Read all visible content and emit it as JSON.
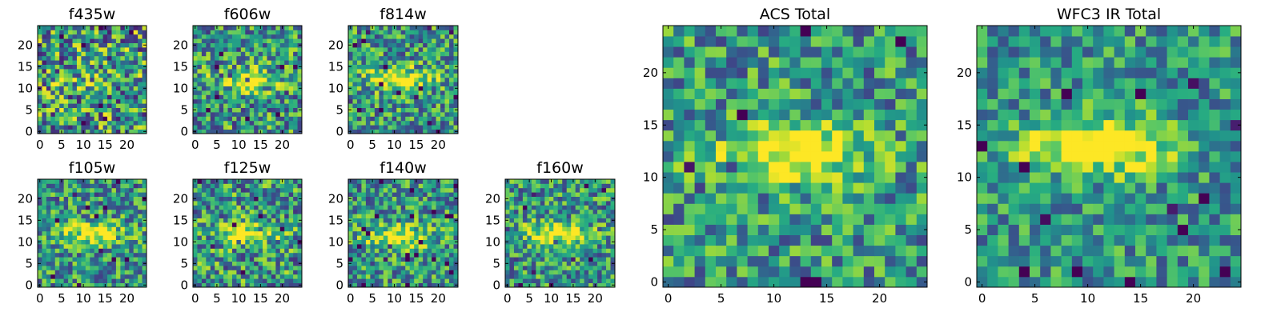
{
  "chart_data": [
    {
      "type": "heatmap",
      "title": "f435w",
      "size": 25,
      "seed": 11,
      "blob": {
        "cx": 12,
        "cy": 12,
        "amp": 0.1
      },
      "noise": 0.55,
      "xticks": [
        "0",
        "5",
        "10",
        "15",
        "20"
      ],
      "yticks": [
        "0",
        "5",
        "10",
        "15",
        "20"
      ],
      "xlim": [
        -0.5,
        24.5
      ],
      "ylim": [
        -0.5,
        24.5
      ],
      "colormap": "viridis"
    },
    {
      "type": "heatmap",
      "title": "f606w",
      "size": 25,
      "seed": 23,
      "blob": {
        "cx": 12,
        "cy": 12,
        "amp": 0.45
      },
      "noise": 0.45,
      "xticks": [
        "0",
        "5",
        "10",
        "15",
        "20"
      ],
      "yticks": [
        "0",
        "5",
        "10",
        "15",
        "20"
      ],
      "xlim": [
        -0.5,
        24.5
      ],
      "ylim": [
        -0.5,
        24.5
      ],
      "colormap": "viridis"
    },
    {
      "type": "heatmap",
      "title": "f814w",
      "size": 25,
      "seed": 37,
      "blob": {
        "cx": 11,
        "cy": 12,
        "amp": 0.55
      },
      "noise": 0.42,
      "xticks": [
        "0",
        "5",
        "10",
        "15",
        "20"
      ],
      "yticks": [
        "0",
        "5",
        "10",
        "15",
        "20"
      ],
      "xlim": [
        -0.5,
        24.5
      ],
      "ylim": [
        -0.5,
        24.5
      ],
      "colormap": "viridis"
    },
    {
      "type": "heatmap",
      "title": "f105w",
      "size": 25,
      "seed": 41,
      "blob": {
        "cx": 12,
        "cy": 12,
        "amp": 0.5
      },
      "noise": 0.4,
      "xticks": [
        "0",
        "5",
        "10",
        "15",
        "20"
      ],
      "yticks": [
        "0",
        "5",
        "10",
        "15",
        "20"
      ],
      "xlim": [
        -0.5,
        24.5
      ],
      "ylim": [
        -0.5,
        24.5
      ],
      "colormap": "viridis"
    },
    {
      "type": "heatmap",
      "title": "f125w",
      "size": 25,
      "seed": 53,
      "blob": {
        "cx": 12,
        "cy": 12,
        "amp": 0.5
      },
      "noise": 0.45,
      "xticks": [
        "0",
        "5",
        "10",
        "15",
        "20"
      ],
      "yticks": [
        "0",
        "5",
        "10",
        "15",
        "20"
      ],
      "xlim": [
        -0.5,
        24.5
      ],
      "ylim": [
        -0.5,
        24.5
      ],
      "colormap": "viridis"
    },
    {
      "type": "heatmap",
      "title": "f140w",
      "size": 25,
      "seed": 67,
      "blob": {
        "cx": 11,
        "cy": 11,
        "amp": 0.5
      },
      "noise": 0.4,
      "xticks": [
        "0",
        "5",
        "10",
        "15",
        "20"
      ],
      "yticks": [
        "0",
        "5",
        "10",
        "15",
        "20"
      ],
      "xlim": [
        -0.5,
        24.5
      ],
      "ylim": [
        -0.5,
        24.5
      ],
      "colormap": "viridis"
    },
    {
      "type": "heatmap",
      "title": "f160w",
      "size": 25,
      "seed": 79,
      "blob": {
        "cx": 11,
        "cy": 12,
        "amp": 0.5
      },
      "noise": 0.4,
      "xticks": [
        "0",
        "5",
        "10",
        "15",
        "20"
      ],
      "yticks": [
        "0",
        "5",
        "10",
        "15",
        "20"
      ],
      "xlim": [
        -0.5,
        24.5
      ],
      "ylim": [
        -0.5,
        24.5
      ],
      "colormap": "viridis"
    },
    {
      "type": "heatmap",
      "title": "ACS Total",
      "size": 25,
      "seed": 97,
      "blob": {
        "cx": 12,
        "cy": 12,
        "amp": 0.6
      },
      "noise": 0.38,
      "xticks": [
        "0",
        "5",
        "10",
        "15",
        "20"
      ],
      "yticks": [
        "0",
        "5",
        "10",
        "15",
        "20"
      ],
      "xlim": [
        -0.5,
        24.5
      ],
      "ylim": [
        -0.5,
        24.5
      ],
      "colormap": "viridis"
    },
    {
      "type": "heatmap",
      "title": "WFC3 IR Total",
      "size": 25,
      "seed": 131,
      "blob": {
        "cx": 11,
        "cy": 13,
        "amp": 0.6
      },
      "noise": 0.32,
      "xticks": [
        "0",
        "5",
        "10",
        "15",
        "20"
      ],
      "yticks": [
        "0",
        "5",
        "10",
        "15",
        "20"
      ],
      "xlim": [
        -0.5,
        24.5
      ],
      "ylim": [
        -0.5,
        24.5
      ],
      "colormap": "viridis"
    }
  ]
}
